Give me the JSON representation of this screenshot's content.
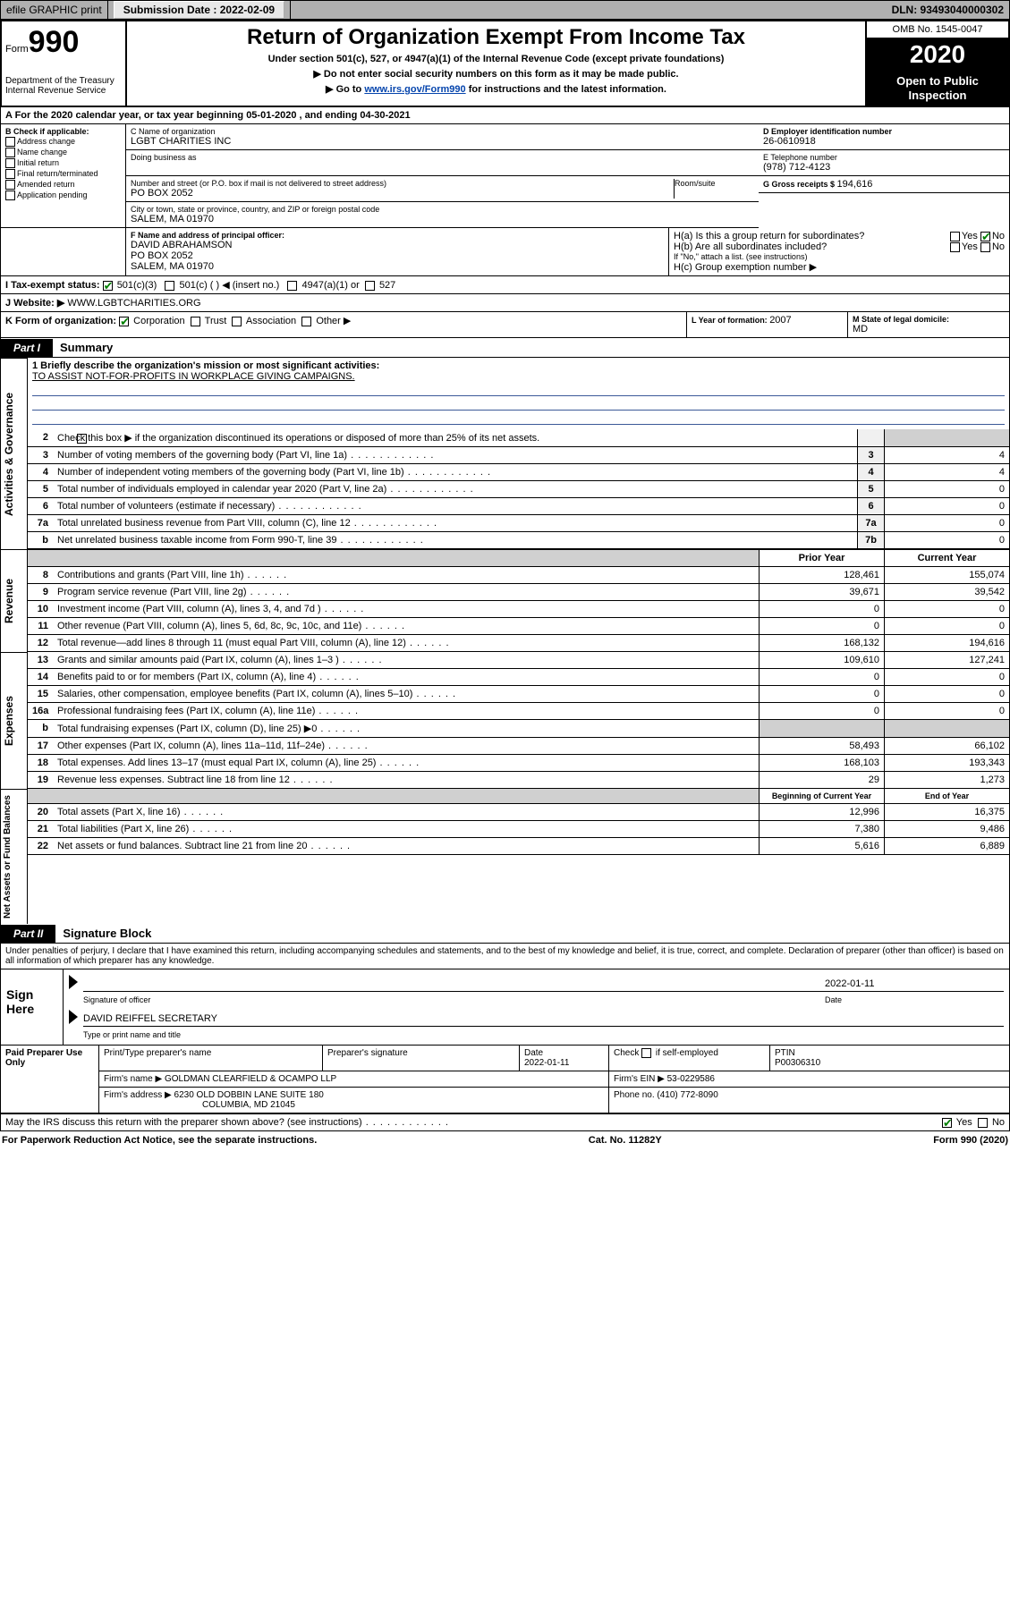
{
  "topbar": {
    "efile": "efile GRAPHIC print",
    "submission_label": "Submission Date : 2022-02-09",
    "dln_label": "DLN: 93493040000302"
  },
  "header": {
    "form_label": "Form",
    "form_number": "990",
    "dept": "Department of the Treasury\nInternal Revenue Service",
    "title": "Return of Organization Exempt From Income Tax",
    "subtitle": "Under section 501(c), 527, or 4947(a)(1) of the Internal Revenue Code (except private foundations)",
    "line1": "▶ Do not enter social security numbers on this form as it may be made public.",
    "line2_pre": "▶ Go to ",
    "line2_link": "www.irs.gov/Form990",
    "line2_post": " for instructions and the latest information.",
    "omb": "OMB No. 1545-0047",
    "year": "2020",
    "public": "Open to Public Inspection"
  },
  "periodA": {
    "text": "A For the 2020 calendar year, or tax year beginning 05-01-2020   , and ending 04-30-2021"
  },
  "boxB": {
    "label": "B Check if applicable:",
    "items": [
      "Address change",
      "Name change",
      "Initial return",
      "Final return/terminated",
      "Amended return",
      "Application pending"
    ]
  },
  "boxC": {
    "name_label": "C Name of organization",
    "name": "LGBT CHARITIES INC",
    "dba_label": "Doing business as",
    "addr_label": "Number and street (or P.O. box if mail is not delivered to street address)",
    "room_label": "Room/suite",
    "addr": "PO BOX 2052",
    "city_label": "City or town, state or province, country, and ZIP or foreign postal code",
    "city": "SALEM, MA  01970"
  },
  "boxD": {
    "label": "D Employer identification number",
    "ein": "26-0610918"
  },
  "boxE": {
    "label": "E Telephone number",
    "phone": "(978) 712-4123"
  },
  "boxG": {
    "label": "G Gross receipts $ ",
    "amount": "194,616"
  },
  "boxF": {
    "label": "F Name and address of principal officer:",
    "name": "DAVID ABRAHAMSON",
    "addr1": "PO BOX 2052",
    "addr2": "SALEM, MA  01970"
  },
  "boxH": {
    "a_label": "H(a)  Is this a group return for subordinates?",
    "b_label": "H(b)  Are all subordinates included?",
    "b_note": "If \"No,\" attach a list. (see instructions)",
    "c_label": "H(c)  Group exemption number ▶",
    "yes": "Yes",
    "no": "No"
  },
  "boxI": {
    "label": "I    Tax-exempt status:",
    "c3": "501(c)(3)",
    "c": "501(c) (   ) ◀ (insert no.)",
    "a1": "4947(a)(1) or",
    "527": "527"
  },
  "boxJ": {
    "label": "J   Website: ▶",
    "url": "WWW.LGBTCHARITIES.ORG"
  },
  "boxK": {
    "label": "K Form of organization:",
    "corp": "Corporation",
    "trust": "Trust",
    "assoc": "Association",
    "other": "Other ▶"
  },
  "boxL": {
    "label": "L Year of formation: ",
    "year": "2007"
  },
  "boxM": {
    "label": "M State of legal domicile:",
    "state": "MD"
  },
  "part1": {
    "label": "Part I",
    "title": "Summary"
  },
  "mission": {
    "label": "1   Briefly describe the organization's mission or most significant activities:",
    "text": "TO ASSIST NOT-FOR-PROFITS IN WORKPLACE GIVING CAMPAIGNS."
  },
  "governance": {
    "line2": "Check this box ▶        if the organization discontinued its operations or disposed of more than 25% of its net assets.",
    "rows": [
      {
        "n": "3",
        "label": "Number of voting members of the governing body (Part VI, line 1a)",
        "box": "3",
        "val": "4"
      },
      {
        "n": "4",
        "label": "Number of independent voting members of the governing body (Part VI, line 1b)",
        "box": "4",
        "val": "4"
      },
      {
        "n": "5",
        "label": "Total number of individuals employed in calendar year 2020 (Part V, line 2a)",
        "box": "5",
        "val": "0"
      },
      {
        "n": "6",
        "label": "Total number of volunteers (estimate if necessary)",
        "box": "6",
        "val": "0"
      },
      {
        "n": "7a",
        "label": "Total unrelated business revenue from Part VIII, column (C), line 12",
        "box": "7a",
        "val": "0"
      },
      {
        "n": "b",
        "label": "Net unrelated business taxable income from Form 990-T, line 39",
        "box": "7b",
        "val": "0"
      }
    ]
  },
  "columns": {
    "prior": "Prior Year",
    "current": "Current Year",
    "bocy": "Beginning of Current Year",
    "eoy": "End of Year"
  },
  "revenue": [
    {
      "n": "8",
      "label": "Contributions and grants (Part VIII, line 1h)",
      "v1": "128,461",
      "v2": "155,074"
    },
    {
      "n": "9",
      "label": "Program service revenue (Part VIII, line 2g)",
      "v1": "39,671",
      "v2": "39,542"
    },
    {
      "n": "10",
      "label": "Investment income (Part VIII, column (A), lines 3, 4, and 7d )",
      "v1": "0",
      "v2": "0"
    },
    {
      "n": "11",
      "label": "Other revenue (Part VIII, column (A), lines 5, 6d, 8c, 9c, 10c, and 11e)",
      "v1": "0",
      "v2": "0"
    },
    {
      "n": "12",
      "label": "Total revenue—add lines 8 through 11 (must equal Part VIII, column (A), line 12)",
      "v1": "168,132",
      "v2": "194,616"
    }
  ],
  "expenses": [
    {
      "n": "13",
      "label": "Grants and similar amounts paid (Part IX, column (A), lines 1–3 )",
      "v1": "109,610",
      "v2": "127,241"
    },
    {
      "n": "14",
      "label": "Benefits paid to or for members (Part IX, column (A), line 4)",
      "v1": "0",
      "v2": "0"
    },
    {
      "n": "15",
      "label": "Salaries, other compensation, employee benefits (Part IX, column (A), lines 5–10)",
      "v1": "0",
      "v2": "0"
    },
    {
      "n": "16a",
      "label": "Professional fundraising fees (Part IX, column (A), line 11e)",
      "v1": "0",
      "v2": "0"
    },
    {
      "n": "b",
      "label": "Total fundraising expenses (Part IX, column (D), line 25) ▶0",
      "v1": "",
      "v2": "",
      "grey": true
    },
    {
      "n": "17",
      "label": "Other expenses (Part IX, column (A), lines 11a–11d, 11f–24e)",
      "v1": "58,493",
      "v2": "66,102"
    },
    {
      "n": "18",
      "label": "Total expenses. Add lines 13–17 (must equal Part IX, column (A), line 25)",
      "v1": "168,103",
      "v2": "193,343"
    },
    {
      "n": "19",
      "label": "Revenue less expenses. Subtract line 18 from line 12",
      "v1": "29",
      "v2": "1,273"
    }
  ],
  "netassets": [
    {
      "n": "20",
      "label": "Total assets (Part X, line 16)",
      "v1": "12,996",
      "v2": "16,375"
    },
    {
      "n": "21",
      "label": "Total liabilities (Part X, line 26)",
      "v1": "7,380",
      "v2": "9,486"
    },
    {
      "n": "22",
      "label": "Net assets or fund balances. Subtract line 21 from line 20",
      "v1": "5,616",
      "v2": "6,889"
    }
  ],
  "part2": {
    "label": "Part II",
    "title": "Signature Block"
  },
  "perjury": "Under penalties of perjury, I declare that I have examined this return, including accompanying schedules and statements, and to the best of my knowledge and belief, it is true, correct, and complete. Declaration of preparer (other than officer) is based on all information of which preparer has any knowledge.",
  "sign": {
    "left": "Sign Here",
    "sig_label": "Signature of officer",
    "date_label": "Date",
    "date": "2022-01-11",
    "name": "DAVID REIFFEL  SECRETARY",
    "name_label": "Type or print name and title"
  },
  "preparer": {
    "left": "Paid Preparer Use Only",
    "h_print": "Print/Type preparer's name",
    "h_sig": "Preparer's signature",
    "h_date": "Date",
    "date": "2022-01-11",
    "h_check": "Check         if self-employed",
    "h_ptin": "PTIN",
    "ptin": "P00306310",
    "firm_label": "Firm's name      ▶",
    "firm": "GOLDMAN CLEARFIELD & OCAMPO LLP",
    "ein_label": "Firm's EIN ▶",
    "ein": "53-0229586",
    "addr_label": "Firm's address  ▶",
    "addr1": "6230 OLD DOBBIN LANE SUITE 180",
    "addr2": "COLUMBIA, MD  21045",
    "phone_label": "Phone no.",
    "phone": "(410) 772-8090",
    "discuss": "May the IRS discuss this return with the preparer shown above? (see instructions)"
  },
  "footer": {
    "left": "For Paperwork Reduction Act Notice, see the separate instructions.",
    "mid": "Cat. No. 11282Y",
    "right": "Form 990 (2020)"
  }
}
